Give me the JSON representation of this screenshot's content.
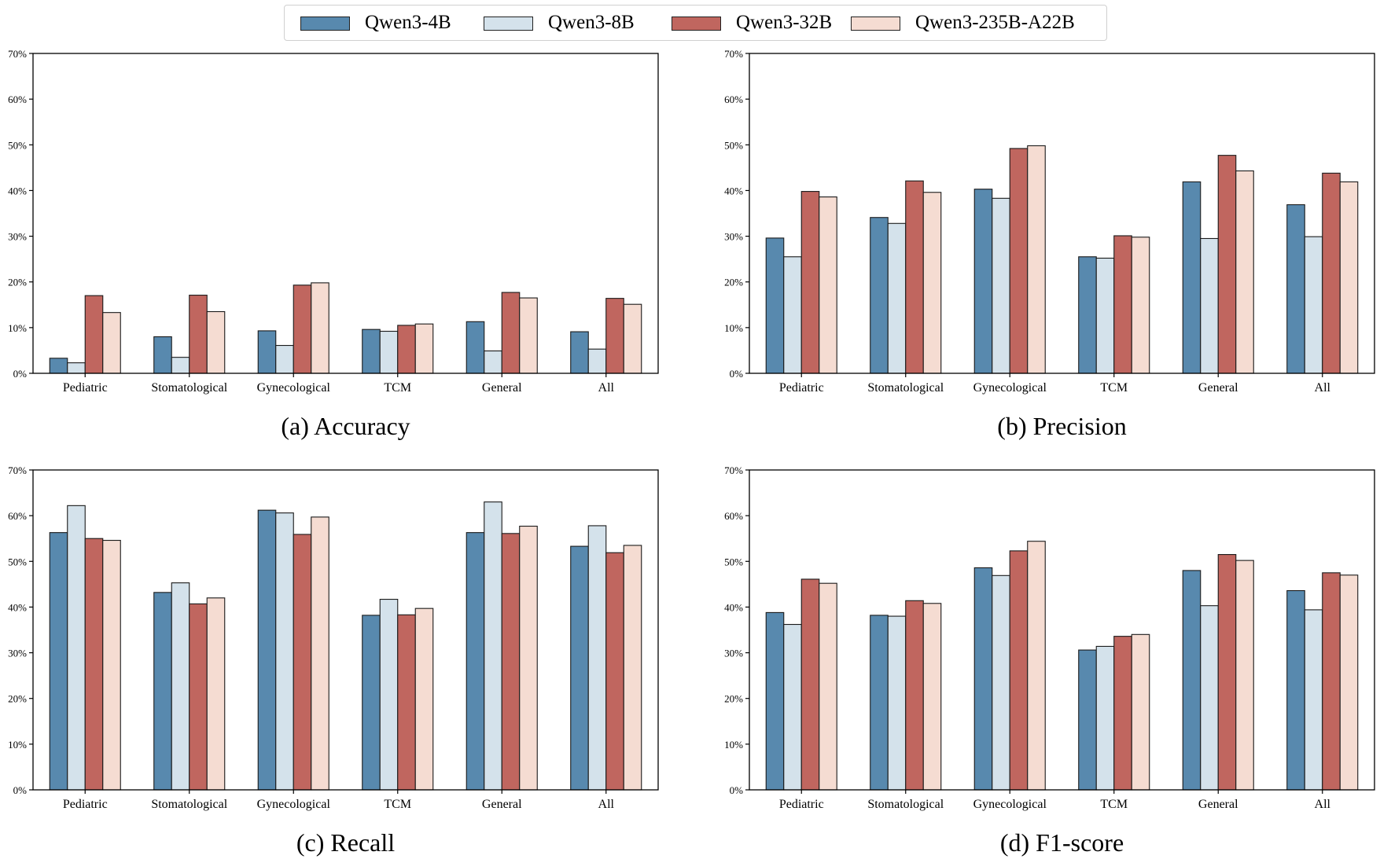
{
  "legend": {
    "series": [
      {
        "name": "Qwen3-4B",
        "color": "#5889ae"
      },
      {
        "name": "Qwen3-8B",
        "color": "#d4e2eb"
      },
      {
        "name": "Qwen3-32B",
        "color": "#c0665f"
      },
      {
        "name": "Qwen3-235B-A22B",
        "color": "#f5dcd2"
      }
    ]
  },
  "chart_data": [
    {
      "type": "bar",
      "title": "(a) Accuracy",
      "categories": [
        "Pediatric",
        "Stomatological",
        "Gynecological",
        "TCM",
        "General",
        "All"
      ],
      "yticks": [
        "0%",
        "10%",
        "20%",
        "30%",
        "40%",
        "50%",
        "60%",
        "70%"
      ],
      "ylim": [
        0,
        70
      ],
      "series": [
        {
          "name": "Qwen3-4B",
          "values": [
            3.3,
            8.0,
            9.3,
            9.6,
            11.3,
            9.1
          ]
        },
        {
          "name": "Qwen3-8B",
          "values": [
            2.3,
            3.5,
            6.1,
            9.2,
            4.9,
            5.3
          ]
        },
        {
          "name": "Qwen3-32B",
          "values": [
            17.0,
            17.1,
            19.3,
            10.5,
            17.7,
            16.4
          ]
        },
        {
          "name": "Qwen3-235B-A22B",
          "values": [
            13.3,
            13.5,
            19.8,
            10.8,
            16.5,
            15.1
          ]
        }
      ]
    },
    {
      "type": "bar",
      "title": "(b) Precision",
      "categories": [
        "Pediatric",
        "Stomatological",
        "Gynecological",
        "TCM",
        "General",
        "All"
      ],
      "yticks": [
        "0%",
        "10%",
        "20%",
        "30%",
        "40%",
        "50%",
        "60%",
        "70%"
      ],
      "ylim": [
        0,
        70
      ],
      "series": [
        {
          "name": "Qwen3-4B",
          "values": [
            29.6,
            34.1,
            40.3,
            25.5,
            41.9,
            36.9
          ]
        },
        {
          "name": "Qwen3-8B",
          "values": [
            25.5,
            32.8,
            38.3,
            25.2,
            29.5,
            29.9
          ]
        },
        {
          "name": "Qwen3-32B",
          "values": [
            39.8,
            42.1,
            49.2,
            30.1,
            47.7,
            43.8
          ]
        },
        {
          "name": "Qwen3-235B-A22B",
          "values": [
            38.6,
            39.6,
            49.8,
            29.8,
            44.3,
            41.9
          ]
        }
      ]
    },
    {
      "type": "bar",
      "title": "(c) Recall",
      "categories": [
        "Pediatric",
        "Stomatological",
        "Gynecological",
        "TCM",
        "General",
        "All"
      ],
      "yticks": [
        "0%",
        "10%",
        "20%",
        "30%",
        "40%",
        "50%",
        "60%",
        "70%"
      ],
      "ylim": [
        0,
        70
      ],
      "series": [
        {
          "name": "Qwen3-4B",
          "values": [
            56.3,
            43.2,
            61.2,
            38.2,
            56.3,
            53.3
          ]
        },
        {
          "name": "Qwen3-8B",
          "values": [
            62.2,
            45.3,
            60.6,
            41.7,
            63.0,
            57.8
          ]
        },
        {
          "name": "Qwen3-32B",
          "values": [
            55.0,
            40.7,
            55.9,
            38.3,
            56.1,
            51.9
          ]
        },
        {
          "name": "Qwen3-235B-A22B",
          "values": [
            54.6,
            42.0,
            59.7,
            39.7,
            57.7,
            53.5
          ]
        }
      ]
    },
    {
      "type": "bar",
      "title": "(d) F1-score",
      "categories": [
        "Pediatric",
        "Stomatological",
        "Gynecological",
        "TCM",
        "General",
        "All"
      ],
      "yticks": [
        "0%",
        "10%",
        "20%",
        "30%",
        "40%",
        "50%",
        "60%",
        "70%"
      ],
      "ylim": [
        0,
        70
      ],
      "series": [
        {
          "name": "Qwen3-4B",
          "values": [
            38.8,
            38.2,
            48.6,
            30.6,
            48.0,
            43.6
          ]
        },
        {
          "name": "Qwen3-8B",
          "values": [
            36.2,
            38.0,
            46.9,
            31.4,
            40.3,
            39.4
          ]
        },
        {
          "name": "Qwen3-32B",
          "values": [
            46.1,
            41.4,
            52.3,
            33.6,
            51.5,
            47.5
          ]
        },
        {
          "name": "Qwen3-235B-A22B",
          "values": [
            45.2,
            40.8,
            54.4,
            34.0,
            50.2,
            47.0
          ]
        }
      ]
    }
  ]
}
